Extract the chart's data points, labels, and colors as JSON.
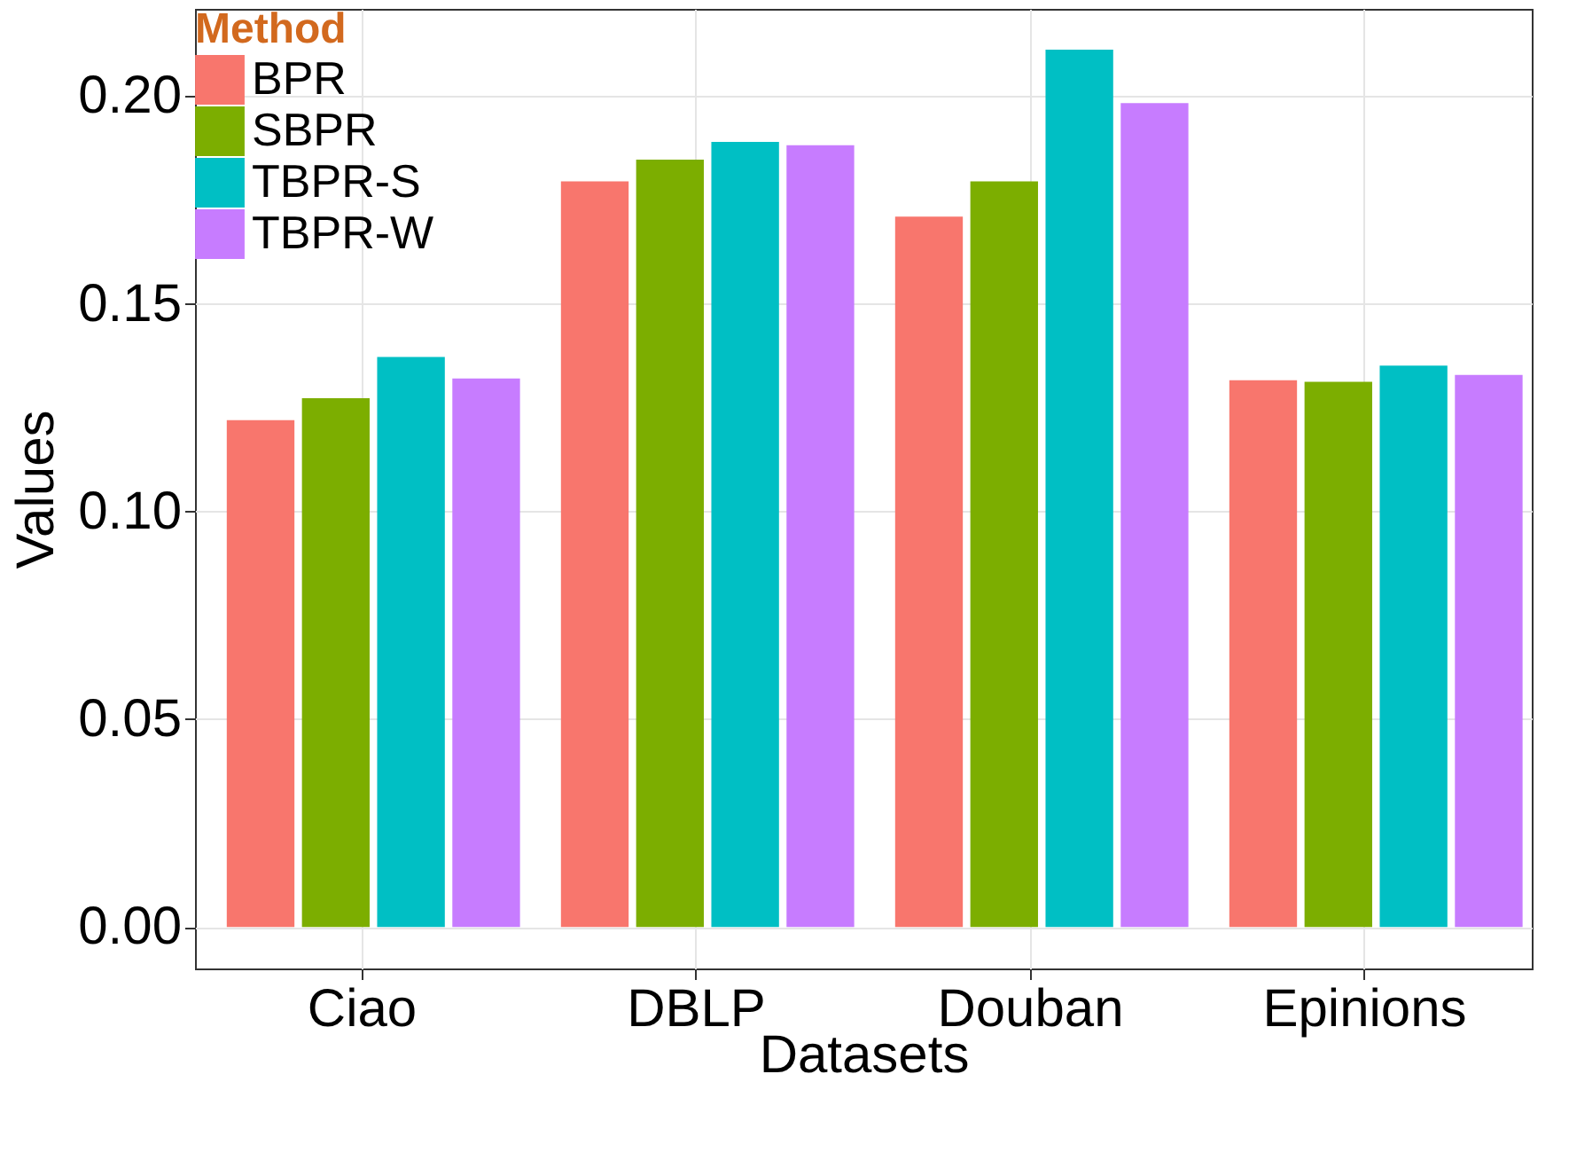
{
  "chart_data": {
    "type": "bar",
    "xlabel": "Datasets",
    "ylabel": "Values",
    "legend_title": "Method",
    "categories": [
      "Ciao",
      "DBLP",
      "Douban",
      "Epinions"
    ],
    "series": [
      {
        "name": "BPR",
        "color": "#f8766d",
        "values": [
          0.122,
          0.1795,
          0.171,
          0.1316
        ]
      },
      {
        "name": "SBPR",
        "color": "#7cae00",
        "values": [
          0.1273,
          0.1847,
          0.1795,
          0.1312
        ]
      },
      {
        "name": "TBPR-S",
        "color": "#00bfc4",
        "values": [
          0.1372,
          0.189,
          0.2112,
          0.1351
        ]
      },
      {
        "name": "TBPR-W",
        "color": "#c77cff",
        "values": [
          0.132,
          0.1882,
          0.1983,
          0.1329
        ]
      }
    ],
    "ylim": [
      -0.01,
      0.221
    ],
    "yticks": [
      {
        "value": 0.0,
        "label": "0.00"
      },
      0.05,
      {
        "value": 0.1,
        "label": "0.10"
      },
      0.15,
      {
        "value": 0.2,
        "label": "0.20"
      }
    ],
    "grid": true,
    "legend": "top left"
  }
}
